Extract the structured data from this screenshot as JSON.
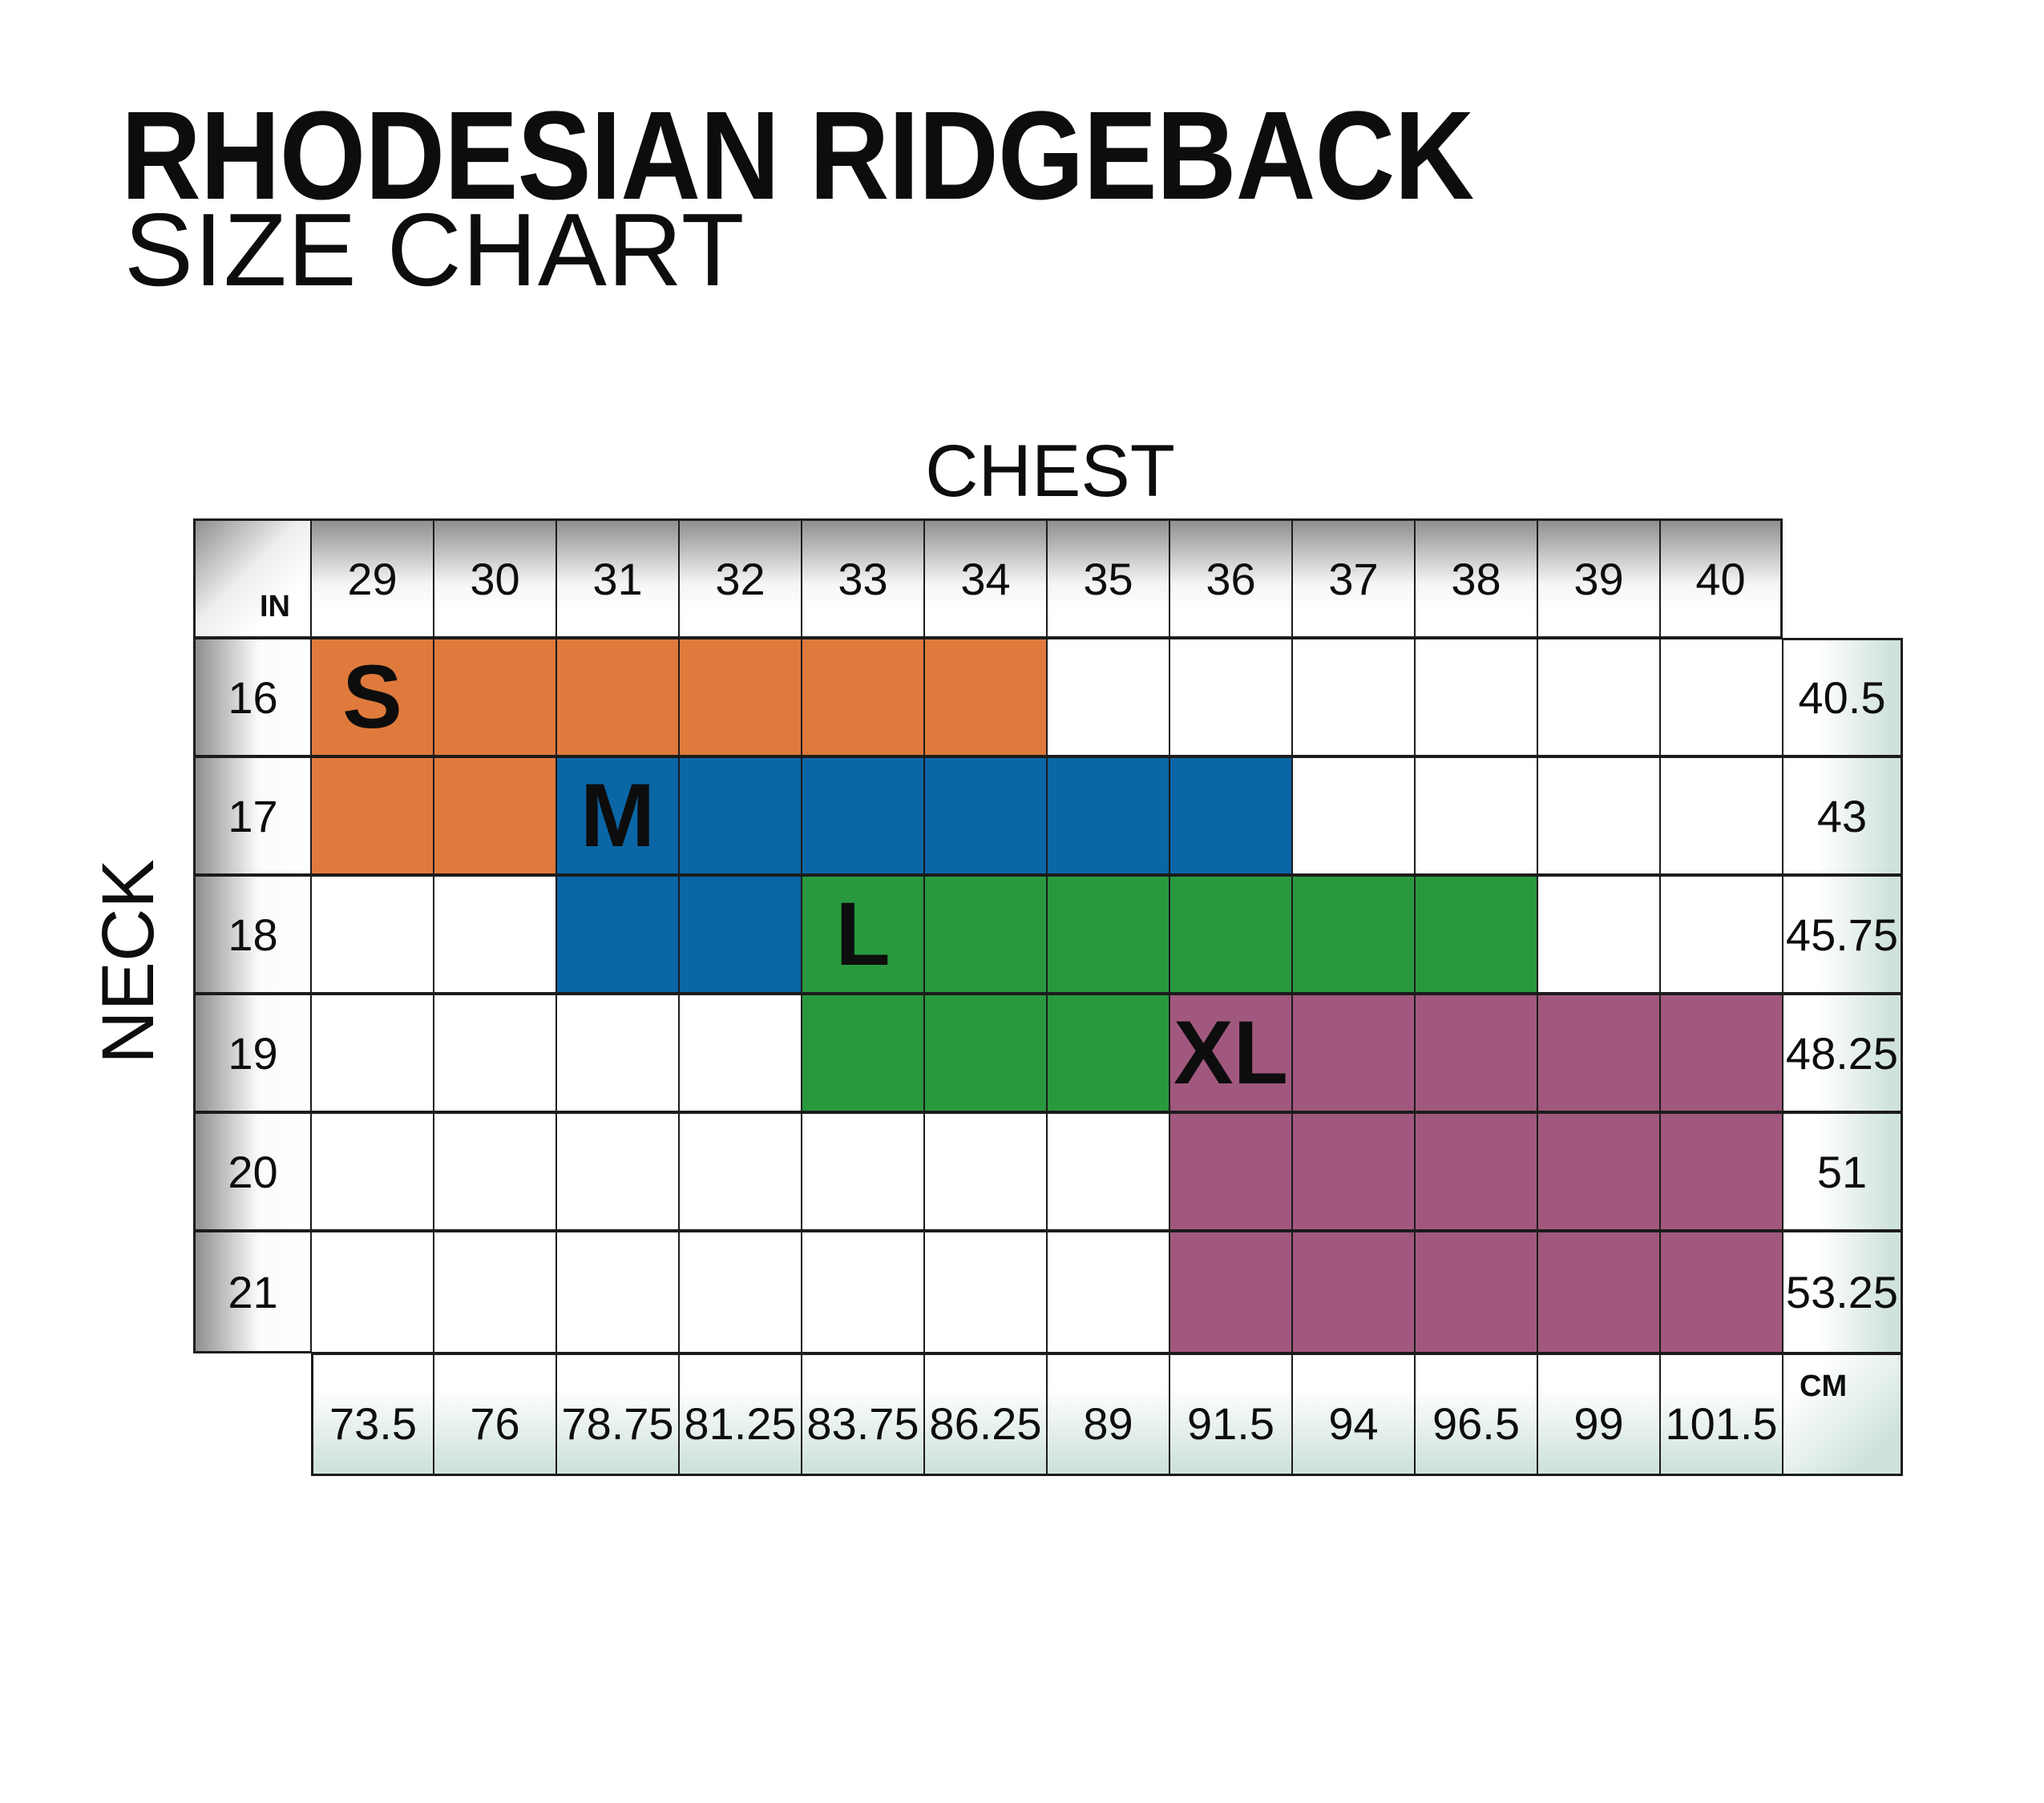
{
  "header": {
    "title": "RHODESIAN RIDGEBACK",
    "subtitle": "SIZE CHART"
  },
  "axis_labels": {
    "chest": "CHEST",
    "neck": "NECK",
    "in": "IN",
    "cm": "CM"
  },
  "colors": {
    "grid_line": "#1c1c1c",
    "text": "#0d0d0d",
    "header_gray": "#8f8f8f",
    "cm_tint": "#cfe2dd",
    "size_s": "#df7a3c",
    "size_m": "#0b66a6",
    "size_l": "#28993f",
    "size_xl": "#a1587e"
  },
  "chart_data": {
    "type": "table",
    "title": "RHODESIAN RIDGEBACK",
    "subtitle": "SIZE CHART",
    "x_axis": {
      "label": "CHEST",
      "unit_top": "IN",
      "unit_bottom": "CM",
      "values_in": [
        29,
        30,
        31,
        32,
        33,
        34,
        35,
        36,
        37,
        38,
        39,
        40
      ],
      "values_cm": [
        73.5,
        76,
        78.75,
        81.25,
        83.75,
        86.25,
        89,
        91.5,
        94,
        96.5,
        99,
        101.5
      ]
    },
    "y_axis": {
      "label": "NECK",
      "unit_left": "IN",
      "unit_right": "CM",
      "values_in": [
        16,
        17,
        18,
        19,
        20,
        21
      ],
      "values_cm": [
        40.5,
        43,
        45.75,
        48.25,
        51,
        53.25
      ]
    },
    "size_regions": [
      {
        "size": "S",
        "color": "#df7a3c",
        "label_at": {
          "neck_in": 16,
          "chest_in": 29
        },
        "spans": [
          {
            "neck_in": 16,
            "chest_in_from": 29,
            "chest_in_to": 34
          },
          {
            "neck_in": 17,
            "chest_in_from": 29,
            "chest_in_to": 30
          }
        ]
      },
      {
        "size": "M",
        "color": "#0b66a6",
        "label_at": {
          "neck_in": 17,
          "chest_in": 31
        },
        "spans": [
          {
            "neck_in": 17,
            "chest_in_from": 31,
            "chest_in_to": 36
          },
          {
            "neck_in": 18,
            "chest_in_from": 31,
            "chest_in_to": 32
          }
        ]
      },
      {
        "size": "L",
        "color": "#28993f",
        "label_at": {
          "neck_in": 18,
          "chest_in": 33
        },
        "spans": [
          {
            "neck_in": 18,
            "chest_in_from": 33,
            "chest_in_to": 38
          },
          {
            "neck_in": 19,
            "chest_in_from": 33,
            "chest_in_to": 35
          }
        ]
      },
      {
        "size": "XL",
        "color": "#a1587e",
        "label_at": {
          "neck_in": 19,
          "chest_in": 36
        },
        "spans": [
          {
            "neck_in": 19,
            "chest_in_from": 36,
            "chest_in_to": 40
          },
          {
            "neck_in": 20,
            "chest_in_from": 36,
            "chest_in_to": 40
          },
          {
            "neck_in": 21,
            "chest_in_from": 36,
            "chest_in_to": 40
          }
        ]
      }
    ],
    "layout_hints": {
      "grid_on": true,
      "header_row_position": "top",
      "cm_row_position": "bottom",
      "neck_in_column": "left",
      "neck_cm_column": "right"
    }
  }
}
